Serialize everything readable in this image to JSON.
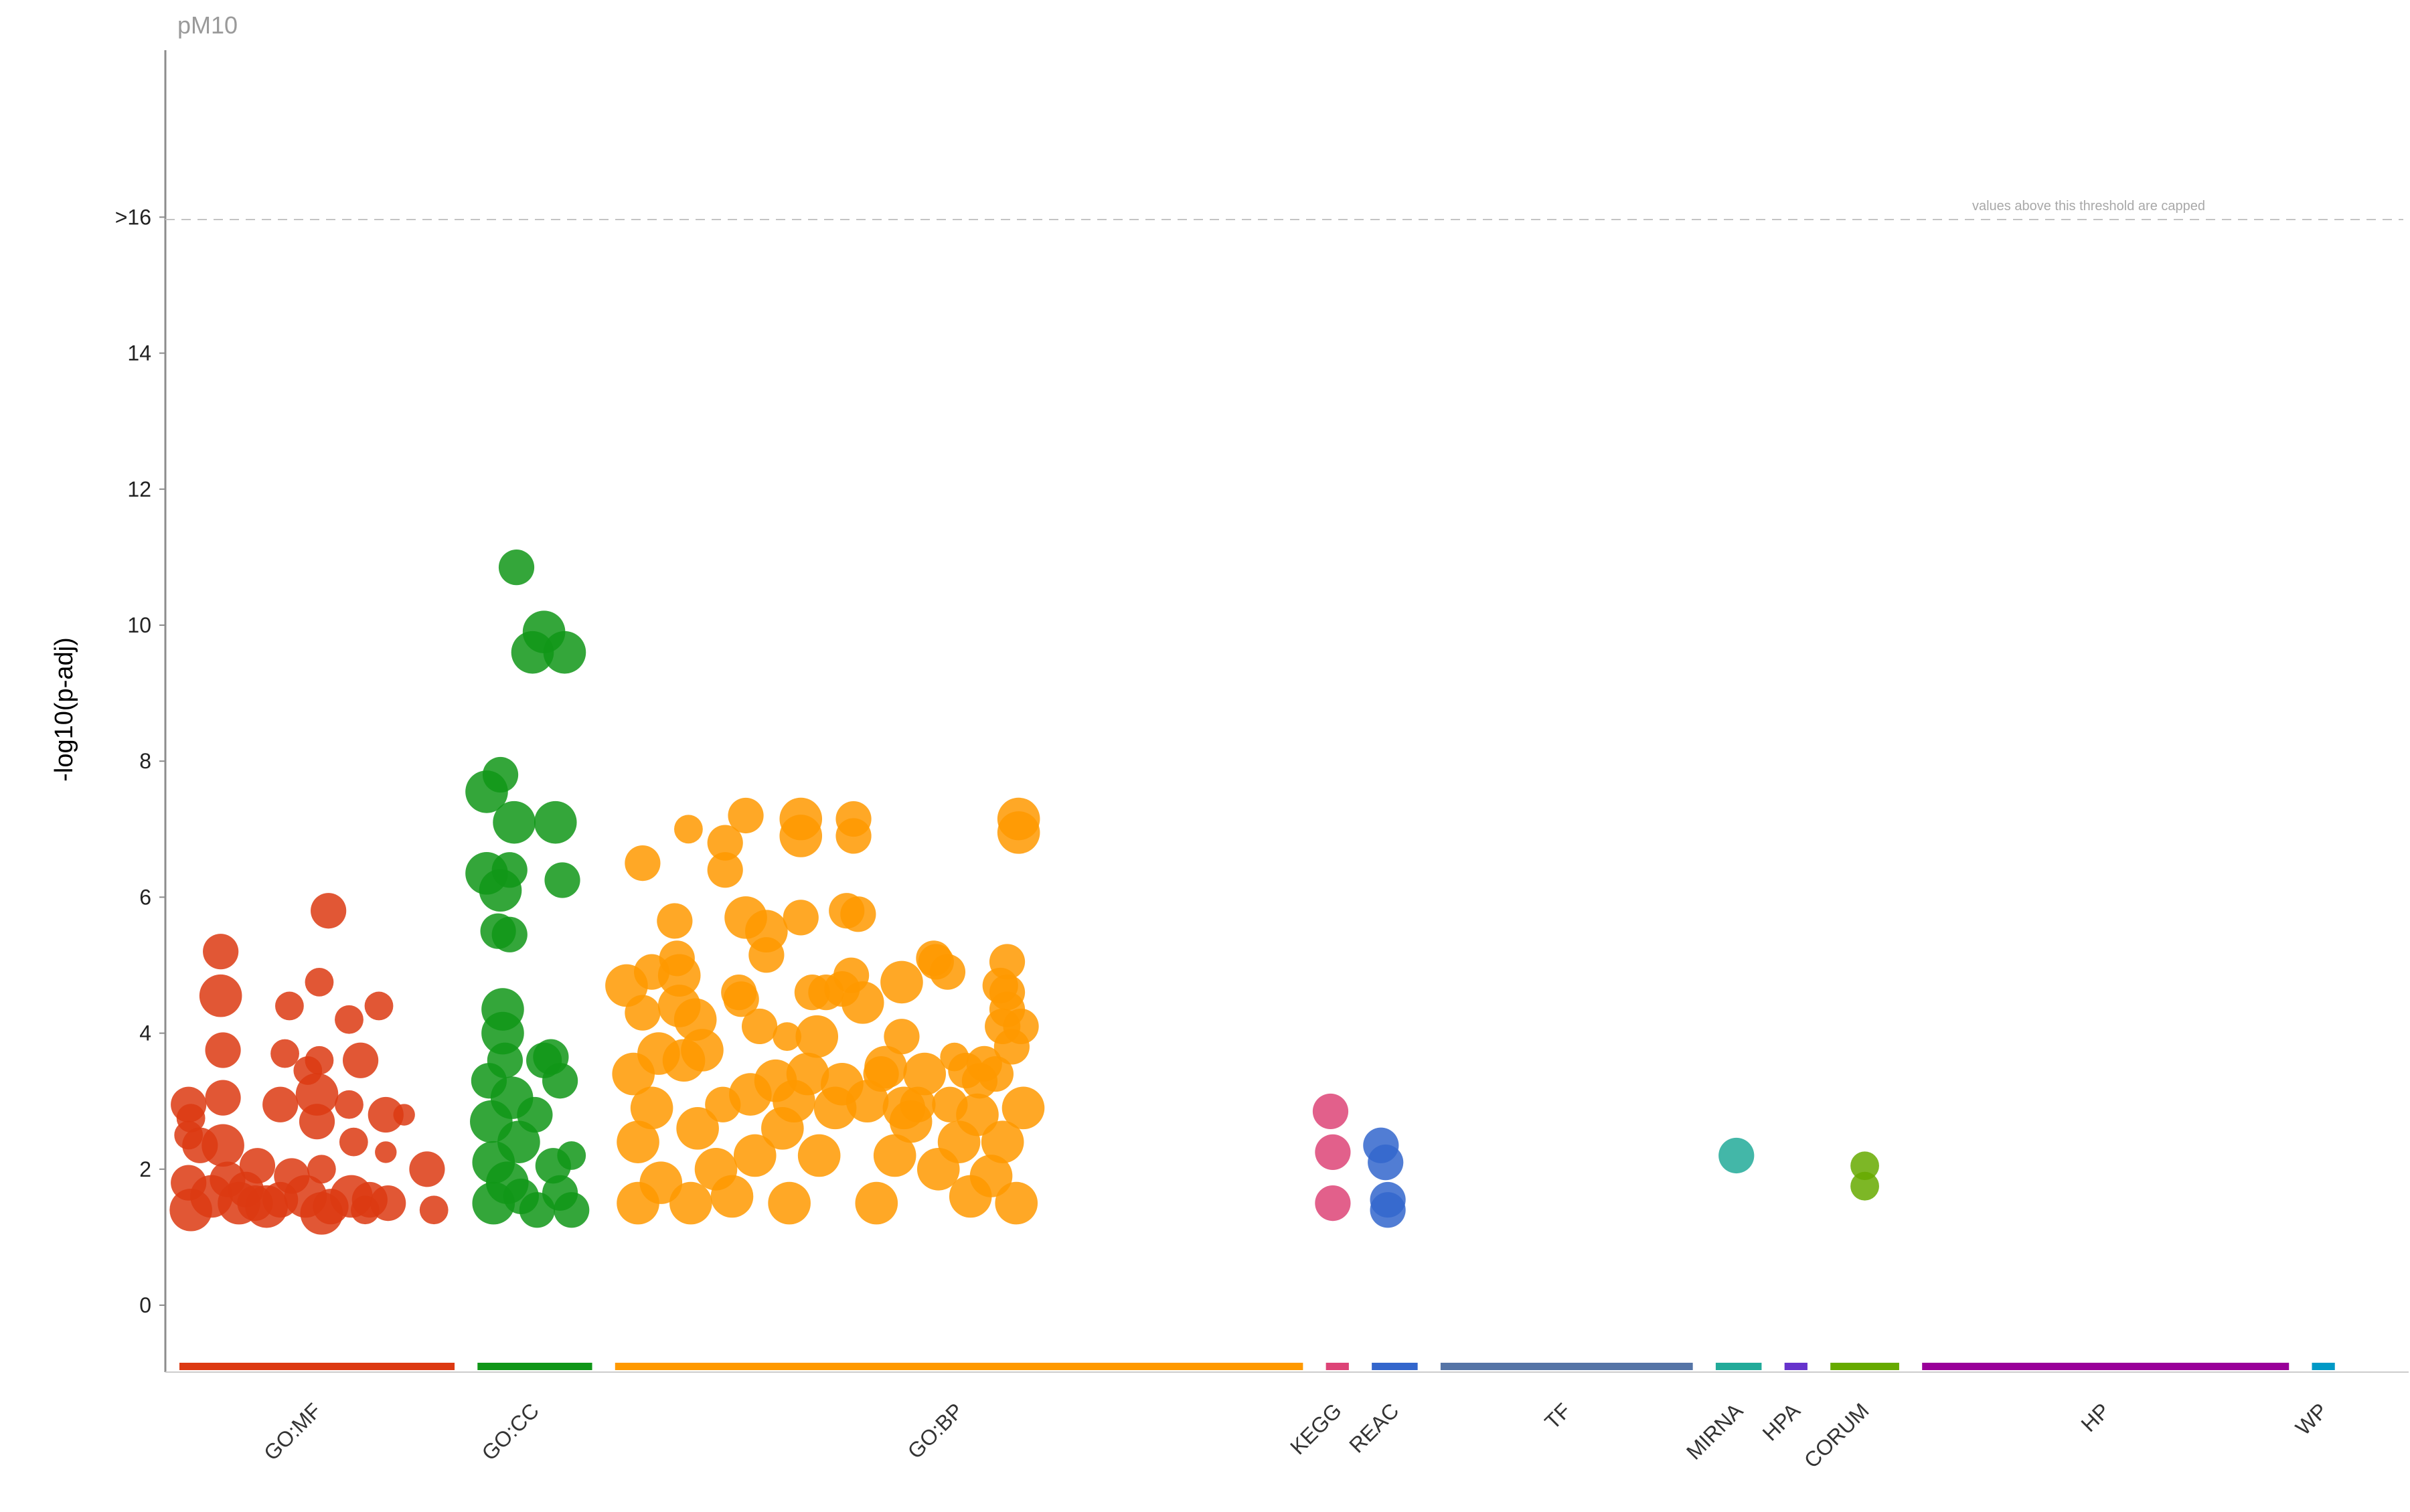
{
  "chart_data": {
    "type": "scatter",
    "title": "pM10",
    "xlabel": "",
    "ylabel": "-log10(p-adj)",
    "ylim": [
      -1,
      18
    ],
    "ytick_labels": [
      "0",
      "2",
      "4",
      "6",
      "8",
      "10",
      "12",
      "14",
      ">16"
    ],
    "yticks": [
      0,
      2,
      4,
      6,
      8,
      10,
      12,
      14,
      16
    ],
    "threshold": {
      "value": 16,
      "style": "dashed",
      "note": "values above this threshold are capped"
    },
    "grid": false,
    "legend": "none",
    "sources": [
      {
        "name": "GO:MF",
        "color": "#dc3912",
        "range": [
          0,
          12
        ]
      },
      {
        "name": "GO:CC",
        "color": "#109618",
        "range": [
          13,
          18
        ]
      },
      {
        "name": "GO:BP",
        "color": "#ff9900",
        "range": [
          19,
          49
        ]
      },
      {
        "name": "KEGG",
        "color": "#dd4477",
        "range": [
          50,
          51
        ]
      },
      {
        "name": "REAC",
        "color": "#3366cc",
        "range": [
          52,
          54
        ]
      },
      {
        "name": "TF",
        "color": "#5574a6",
        "range": [
          55,
          66
        ]
      },
      {
        "name": "MIRNA",
        "color": "#22aa99",
        "range": [
          67,
          69
        ]
      },
      {
        "name": "HPA",
        "color": "#6633cc",
        "range": [
          70,
          71
        ]
      },
      {
        "name": "CORUM",
        "color": "#66aa00",
        "range": [
          72,
          75
        ]
      },
      {
        "name": "HP",
        "color": "#990099",
        "range": [
          76,
          92
        ]
      },
      {
        "name": "WP",
        "color": "#0099c6",
        "range": [
          93,
          94
        ]
      }
    ],
    "series": [
      {
        "name": "GO:MF",
        "color": "#dc3912",
        "points": [
          [
            0.4,
            2.95,
            3
          ],
          [
            0.4,
            2.5,
            2
          ],
          [
            0.4,
            1.8,
            3
          ],
          [
            0.5,
            1.4,
            4
          ],
          [
            0.5,
            2.75,
            2
          ],
          [
            0.9,
            2.35,
            3
          ],
          [
            1.4,
            1.6,
            4
          ],
          [
            1.8,
            5.2,
            3
          ],
          [
            1.8,
            4.55,
            4
          ],
          [
            1.9,
            3.75,
            3
          ],
          [
            1.9,
            3.05,
            3
          ],
          [
            1.9,
            2.35,
            4
          ],
          [
            2.1,
            1.85,
            3
          ],
          [
            2.6,
            1.5,
            4
          ],
          [
            2.9,
            1.7,
            3
          ],
          [
            3.3,
            1.5,
            3
          ],
          [
            3.4,
            2.05,
            3
          ],
          [
            3.8,
            1.45,
            4
          ],
          [
            4.4,
            2.95,
            3
          ],
          [
            4.4,
            1.55,
            3
          ],
          [
            4.6,
            3.7,
            2
          ],
          [
            4.8,
            4.4,
            2
          ],
          [
            4.9,
            1.9,
            3
          ],
          [
            5.5,
            1.6,
            4
          ],
          [
            5.6,
            3.45,
            2
          ],
          [
            6.0,
            3.1,
            4
          ],
          [
            6.0,
            2.7,
            3
          ],
          [
            6.1,
            3.6,
            2
          ],
          [
            6.1,
            4.75,
            2
          ],
          [
            6.2,
            1.35,
            4
          ],
          [
            6.2,
            2.0,
            2
          ],
          [
            6.5,
            5.8,
            3
          ],
          [
            6.6,
            1.45,
            3
          ],
          [
            7.4,
            4.2,
            2
          ],
          [
            7.4,
            2.95,
            2
          ],
          [
            7.5,
            1.6,
            4
          ],
          [
            7.6,
            2.4,
            2
          ],
          [
            7.9,
            3.6,
            3
          ],
          [
            8.1,
            1.4,
            2
          ],
          [
            8.3,
            1.55,
            3
          ],
          [
            8.7,
            4.4,
            2
          ],
          [
            9.0,
            2.8,
            3
          ],
          [
            9.0,
            2.25,
            1
          ],
          [
            9.1,
            1.5,
            3
          ],
          [
            9.8,
            2.8,
            1
          ],
          [
            10.8,
            2.0,
            3
          ],
          [
            11.1,
            1.4,
            2
          ]
        ]
      },
      {
        "name": "GO:CC",
        "color": "#109618",
        "points": [
          [
            13.4,
            7.55,
            4
          ],
          [
            13.4,
            6.35,
            4
          ],
          [
            13.5,
            3.3,
            3
          ],
          [
            13.6,
            2.7,
            4
          ],
          [
            13.7,
            2.1,
            4
          ],
          [
            13.7,
            1.5,
            4
          ],
          [
            13.9,
            5.5,
            3
          ],
          [
            14.0,
            7.8,
            3
          ],
          [
            14.0,
            6.1,
            4
          ],
          [
            14.1,
            4.35,
            4
          ],
          [
            14.1,
            4.0,
            4
          ],
          [
            14.2,
            3.6,
            3
          ],
          [
            14.3,
            1.8,
            4
          ],
          [
            14.4,
            5.45,
            3
          ],
          [
            14.4,
            6.4,
            3
          ],
          [
            14.5,
            3.05,
            4
          ],
          [
            14.6,
            7.1,
            4
          ],
          [
            14.7,
            10.85,
            3
          ],
          [
            14.8,
            2.4,
            4
          ],
          [
            14.9,
            1.6,
            3
          ],
          [
            15.4,
            9.6,
            4
          ],
          [
            15.5,
            2.8,
            3
          ],
          [
            15.6,
            1.4,
            3
          ],
          [
            15.9,
            9.9,
            4
          ],
          [
            15.9,
            3.6,
            3
          ],
          [
            16.2,
            3.65,
            3
          ],
          [
            16.3,
            2.05,
            3
          ],
          [
            16.4,
            7.1,
            4
          ],
          [
            16.6,
            1.65,
            3
          ],
          [
            16.6,
            3.3,
            3
          ],
          [
            16.7,
            6.25,
            3
          ],
          [
            16.8,
            9.6,
            4
          ],
          [
            17.1,
            1.4,
            3
          ],
          [
            17.1,
            2.2,
            2
          ]
        ]
      },
      {
        "name": "GO:BP",
        "color": "#ff9900",
        "points": [
          [
            19.5,
            4.7,
            4
          ],
          [
            19.8,
            3.4,
            4
          ],
          [
            20.0,
            2.4,
            4
          ],
          [
            20.0,
            1.5,
            4
          ],
          [
            20.2,
            6.5,
            3
          ],
          [
            20.2,
            4.3,
            3
          ],
          [
            20.6,
            4.9,
            3
          ],
          [
            20.6,
            2.9,
            4
          ],
          [
            20.9,
            3.7,
            4
          ],
          [
            21.0,
            1.8,
            4
          ],
          [
            21.6,
            5.65,
            3
          ],
          [
            21.7,
            5.1,
            3
          ],
          [
            21.8,
            4.85,
            4
          ],
          [
            21.8,
            4.4,
            4
          ],
          [
            22.0,
            3.6,
            4
          ],
          [
            22.2,
            7.0,
            2
          ],
          [
            22.3,
            1.5,
            4
          ],
          [
            22.5,
            4.2,
            4
          ],
          [
            22.6,
            2.6,
            4
          ],
          [
            22.8,
            3.75,
            4
          ],
          [
            23.4,
            2.0,
            4
          ],
          [
            23.7,
            2.95,
            3
          ],
          [
            23.8,
            6.8,
            3
          ],
          [
            23.8,
            6.4,
            3
          ],
          [
            24.1,
            1.6,
            4
          ],
          [
            24.4,
            4.6,
            3
          ],
          [
            24.5,
            4.5,
            3
          ],
          [
            24.7,
            7.2,
            3
          ],
          [
            24.7,
            5.7,
            4
          ],
          [
            24.9,
            3.1,
            4
          ],
          [
            25.1,
            2.2,
            4
          ],
          [
            25.3,
            4.1,
            3
          ],
          [
            25.6,
            5.5,
            4
          ],
          [
            25.6,
            5.15,
            3
          ],
          [
            26.0,
            3.3,
            4
          ],
          [
            26.3,
            2.6,
            4
          ],
          [
            26.5,
            3.95,
            2
          ],
          [
            26.6,
            1.5,
            4
          ],
          [
            26.8,
            3.0,
            4
          ],
          [
            27.1,
            7.15,
            4
          ],
          [
            27.1,
            6.9,
            4
          ],
          [
            27.1,
            5.7,
            3
          ],
          [
            27.4,
            3.4,
            4
          ],
          [
            27.6,
            4.6,
            3
          ],
          [
            27.8,
            3.95,
            4
          ],
          [
            27.9,
            2.2,
            4
          ],
          [
            28.2,
            4.6,
            3
          ],
          [
            28.6,
            2.9,
            4
          ],
          [
            28.9,
            4.65,
            3
          ],
          [
            28.9,
            3.25,
            4
          ],
          [
            29.1,
            5.8,
            3
          ],
          [
            29.3,
            4.85,
            3
          ],
          [
            29.4,
            7.15,
            3
          ],
          [
            29.4,
            6.9,
            3
          ],
          [
            29.6,
            5.75,
            3
          ],
          [
            29.8,
            4.45,
            4
          ],
          [
            30.0,
            3.0,
            4
          ],
          [
            30.4,
            1.5,
            4
          ],
          [
            30.6,
            3.4,
            3
          ],
          [
            30.8,
            3.5,
            4
          ],
          [
            31.2,
            2.2,
            4
          ],
          [
            31.5,
            3.95,
            3
          ],
          [
            31.5,
            4.75,
            4
          ],
          [
            31.6,
            2.9,
            4
          ],
          [
            31.9,
            2.7,
            4
          ],
          [
            32.2,
            2.95,
            3
          ],
          [
            32.5,
            3.4,
            4
          ],
          [
            32.9,
            5.1,
            3
          ],
          [
            33.0,
            5.05,
            3
          ],
          [
            33.1,
            2.0,
            4
          ],
          [
            33.5,
            4.9,
            3
          ],
          [
            33.6,
            2.95,
            3
          ],
          [
            33.8,
            3.65,
            2
          ],
          [
            34.0,
            2.4,
            4
          ],
          [
            34.3,
            3.45,
            3
          ],
          [
            34.5,
            1.6,
            4
          ],
          [
            34.8,
            2.8,
            4
          ],
          [
            34.9,
            3.3,
            3
          ],
          [
            35.1,
            3.55,
            3
          ],
          [
            35.4,
            1.9,
            4
          ],
          [
            35.6,
            3.4,
            3
          ],
          [
            35.8,
            4.7,
            3
          ],
          [
            35.9,
            4.1,
            3
          ],
          [
            35.9,
            2.4,
            4
          ],
          [
            36.1,
            5.05,
            3
          ],
          [
            36.1,
            4.6,
            3
          ],
          [
            36.1,
            4.35,
            3
          ],
          [
            36.3,
            3.8,
            3
          ],
          [
            36.5,
            1.5,
            4
          ],
          [
            36.6,
            7.15,
            4
          ],
          [
            36.6,
            6.95,
            4
          ],
          [
            36.7,
            4.1,
            3
          ],
          [
            36.8,
            2.9,
            4
          ]
        ]
      },
      {
        "name": "KEGG",
        "color": "#dd4477",
        "points": [
          [
            50.2,
            2.85,
            3
          ],
          [
            50.3,
            2.25,
            3
          ],
          [
            50.3,
            1.5,
            3
          ]
        ]
      },
      {
        "name": "REAC",
        "color": "#3366cc",
        "points": [
          [
            52.4,
            2.35,
            3
          ],
          [
            52.6,
            2.1,
            3
          ],
          [
            52.7,
            1.55,
            3
          ],
          [
            52.7,
            1.4,
            3
          ]
        ]
      },
      {
        "name": "MIRNA",
        "color": "#22aa99",
        "points": [
          [
            67.9,
            2.2,
            3
          ]
        ]
      },
      {
        "name": "CORUM",
        "color": "#66aa00",
        "points": [
          [
            73.5,
            2.05,
            2
          ],
          [
            73.5,
            1.75,
            2
          ]
        ]
      }
    ]
  }
}
